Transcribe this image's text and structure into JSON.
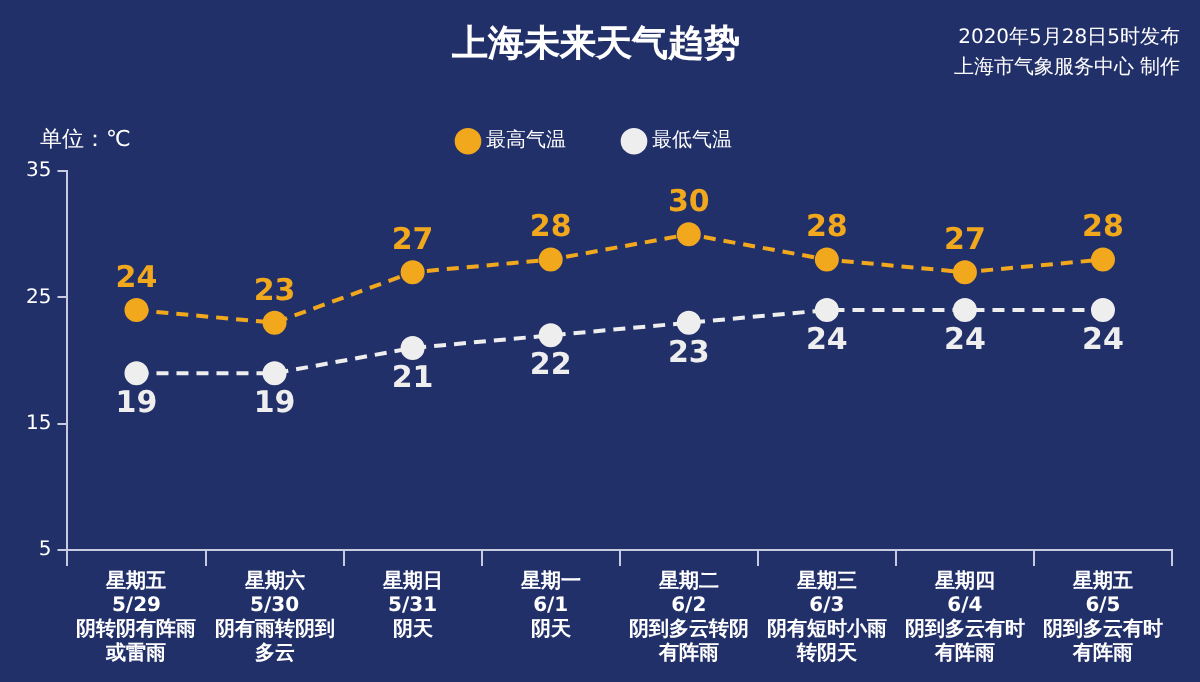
{
  "chart_data": {
    "type": "line",
    "title": "上海未来天气趋势",
    "ylabel": "单位：℃",
    "annotations": [
      "2020年5月28日5时发布",
      "上海市气象服务中心 制作"
    ],
    "categories": [
      "星期五\n5/29\n阴转阴有阵雨或雷雨",
      "星期六\n5/30\n阴有雨转阴到多云",
      "星期日\n5/31\n阴天",
      "星期一\n6/1\n阴天",
      "星期二\n6/2\n阴到多云转阴有阵雨",
      "星期三\n6/3\n阴有短时小雨转阴天",
      "星期四\n6/4\n阴到多云有时有阵雨",
      "星期五\n6/5\n阴到多云有时有阵雨"
    ],
    "series": [
      {
        "name": "最高气温",
        "color": "#f2a81d",
        "values": [
          24,
          23,
          27,
          28,
          30,
          28,
          27,
          28
        ]
      },
      {
        "name": "最低气温",
        "color": "#eeeeee",
        "values": [
          19,
          19,
          21,
          22,
          23,
          24,
          24,
          24
        ]
      }
    ],
    "ylim": [
      5,
      35
    ],
    "yticks": [
      5,
      15,
      25,
      35
    ],
    "grid": false,
    "legend": "top",
    "marker": "circle",
    "line_style": "dashed",
    "data_labels": true
  }
}
